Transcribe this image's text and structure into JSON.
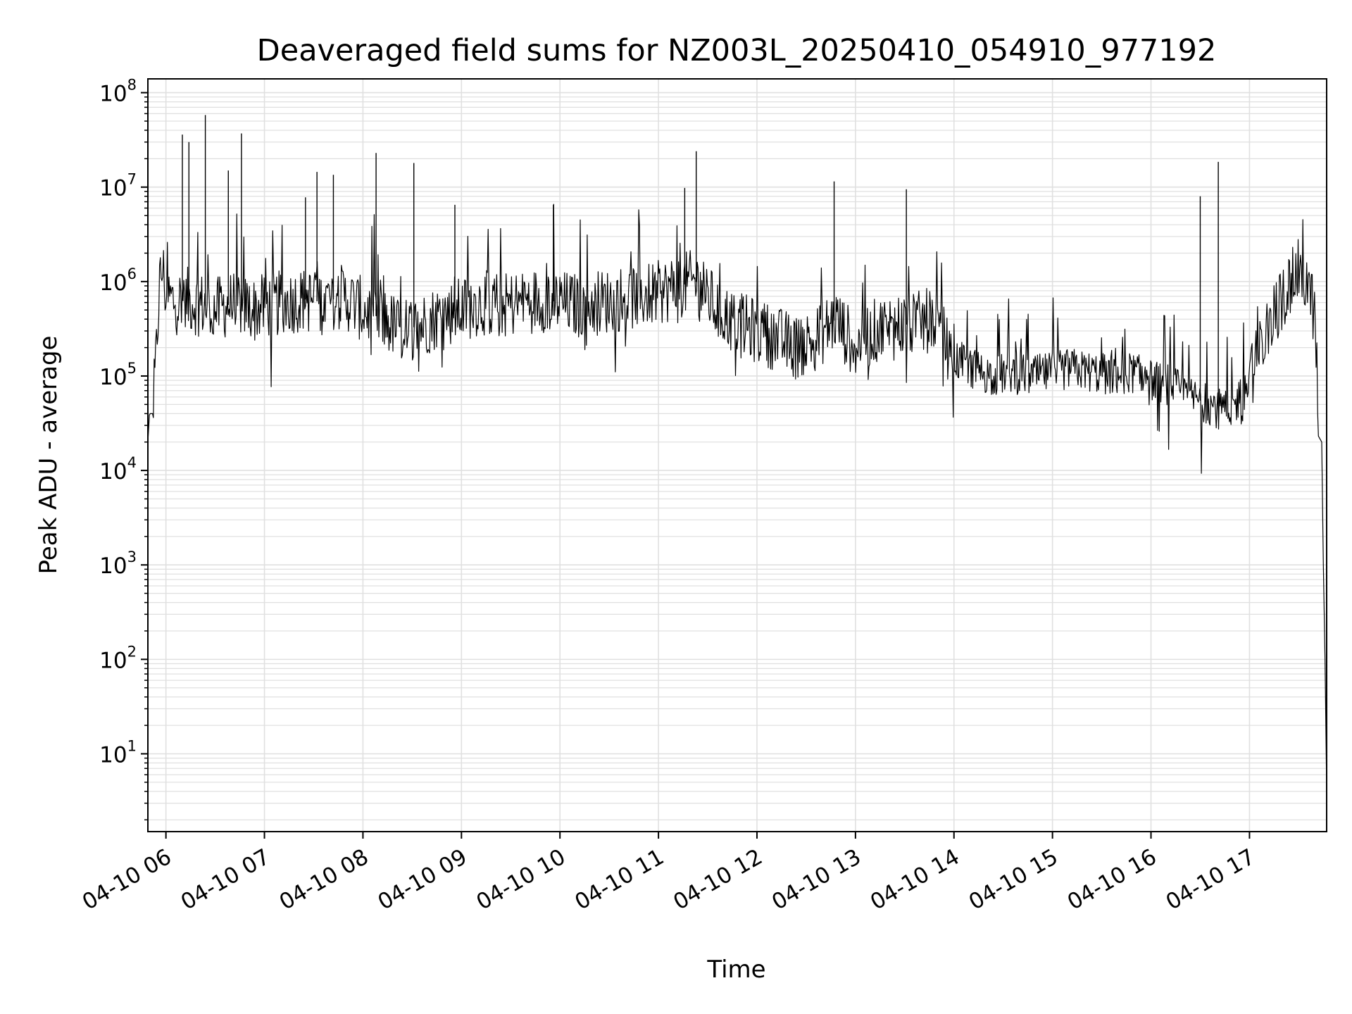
{
  "chart_data": {
    "type": "line",
    "title": "Deaveraged field sums for NZ003L_20250410_054910_977192",
    "xlabel": "Time",
    "ylabel": "Peak ADU - average",
    "yscale": "log",
    "ylim": [
      1.5,
      140000000
    ],
    "xlim": [
      "2025-04-10 05:49",
      "2025-04-10 17:47"
    ],
    "grid": true,
    "line_color": "#000000",
    "grid_color": "#e0e0e0",
    "x_tick_labels": [
      "04-10 06",
      "04-10 07",
      "04-10 08",
      "04-10 09",
      "04-10 10",
      "04-10 11",
      "04-10 12",
      "04-10 13",
      "04-10 14",
      "04-10 15",
      "04-10 16",
      "04-10 17"
    ],
    "x_ticks": [
      "2025-04-10 06:00",
      "2025-04-10 07:00",
      "2025-04-10 08:00",
      "2025-04-10 09:00",
      "2025-04-10 10:00",
      "2025-04-10 11:00",
      "2025-04-10 12:00",
      "2025-04-10 13:00",
      "2025-04-10 14:00",
      "2025-04-10 15:00",
      "2025-04-10 16:00",
      "2025-04-10 17:00"
    ],
    "y_ticks": [
      {
        "base": "10",
        "exp": "1",
        "value": 10
      },
      {
        "base": "10",
        "exp": "2",
        "value": 100
      },
      {
        "base": "10",
        "exp": "3",
        "value": 1000
      },
      {
        "base": "10",
        "exp": "4",
        "value": 10000
      },
      {
        "base": "10",
        "exp": "5",
        "value": 100000
      },
      {
        "base": "10",
        "exp": "6",
        "value": 1000000
      },
      {
        "base": "10",
        "exp": "7",
        "value": 10000000
      },
      {
        "base": "10",
        "exp": "8",
        "value": 100000000
      }
    ],
    "series": [
      {
        "x": [
          "2025-04-10 05:49",
          "2025-04-10 05:50",
          "2025-04-10 05:52",
          "2025-04-10 05:54",
          "2025-04-10 05:56",
          "2025-04-10 05:58",
          "2025-04-10 06:00",
          "2025-04-10 06:06",
          "2025-04-10 06:12",
          "2025-04-10 06:18",
          "2025-04-10 06:24",
          "2025-04-10 06:30",
          "2025-04-10 06:36",
          "2025-04-10 06:42",
          "2025-04-10 06:48",
          "2025-04-10 06:54",
          "2025-04-10 07:00",
          "2025-04-10 07:12",
          "2025-04-10 07:24",
          "2025-04-10 07:36",
          "2025-04-10 07:48",
          "2025-04-10 08:00",
          "2025-04-10 08:12",
          "2025-04-10 08:24",
          "2025-04-10 08:36",
          "2025-04-10 08:48",
          "2025-04-10 09:00",
          "2025-04-10 09:12",
          "2025-04-10 09:24",
          "2025-04-10 09:36",
          "2025-04-10 09:48",
          "2025-04-10 10:00",
          "2025-04-10 10:12",
          "2025-04-10 10:24",
          "2025-04-10 10:36",
          "2025-04-10 10:48",
          "2025-04-10 11:00",
          "2025-04-10 11:12",
          "2025-04-10 11:24",
          "2025-04-10 11:36",
          "2025-04-10 11:48",
          "2025-04-10 12:00",
          "2025-04-10 12:12",
          "2025-04-10 12:24",
          "2025-04-10 12:36",
          "2025-04-10 12:48",
          "2025-04-10 13:00",
          "2025-04-10 13:12",
          "2025-04-10 13:24",
          "2025-04-10 13:36",
          "2025-04-10 13:48",
          "2025-04-10 14:00",
          "2025-04-10 14:12",
          "2025-04-10 14:24",
          "2025-04-10 14:36",
          "2025-04-10 14:48",
          "2025-04-10 15:00",
          "2025-04-10 15:12",
          "2025-04-10 15:24",
          "2025-04-10 15:36",
          "2025-04-10 15:48",
          "2025-04-10 16:00",
          "2025-04-10 16:12",
          "2025-04-10 16:24",
          "2025-04-10 16:36",
          "2025-04-10 16:48",
          "2025-04-10 17:00",
          "2025-04-10 17:12",
          "2025-04-10 17:24",
          "2025-04-10 17:30",
          "2025-04-10 17:36",
          "2025-04-10 17:40",
          "2025-04-10 17:42",
          "2025-04-10 17:44",
          "2025-04-10 17:45",
          "2025-04-10 17:46",
          "2025-04-10 17:47"
        ],
        "y": [
          20000,
          40000,
          40000,
          150000,
          900000,
          1400000,
          700000,
          600000,
          650000,
          600000,
          550000,
          500000,
          550000,
          600000,
          550000,
          500000,
          550000,
          600000,
          650000,
          600000,
          700000,
          500000,
          400000,
          300000,
          350000,
          450000,
          500000,
          600000,
          550000,
          600000,
          650000,
          600000,
          550000,
          600000,
          650000,
          700000,
          750000,
          900000,
          1000000,
          500000,
          350000,
          300000,
          250000,
          200000,
          250000,
          400000,
          200000,
          300000,
          350000,
          350000,
          400000,
          150000,
          120000,
          100000,
          110000,
          100000,
          110000,
          120000,
          110000,
          100000,
          110000,
          90000,
          80000,
          60000,
          50000,
          40000,
          90000,
          350000,
          900000,
          1300000,
          900000,
          400000,
          40000,
          20000,
          1000,
          100,
          4
        ]
      }
    ],
    "spikes": [
      {
        "x": "2025-04-10 06:10",
        "y": 36000000
      },
      {
        "x": "2025-04-10 06:14",
        "y": 30000000
      },
      {
        "x": "2025-04-10 06:24",
        "y": 58000000
      },
      {
        "x": "2025-04-10 06:38",
        "y": 15000000
      },
      {
        "x": "2025-04-10 06:46",
        "y": 37000000
      },
      {
        "x": "2025-04-10 07:25",
        "y": 7800000
      },
      {
        "x": "2025-04-10 07:32",
        "y": 14500000
      },
      {
        "x": "2025-04-10 07:42",
        "y": 13500000
      },
      {
        "x": "2025-04-10 08:08",
        "y": 23000000
      },
      {
        "x": "2025-04-10 08:31",
        "y": 18000000
      },
      {
        "x": "2025-04-10 08:56",
        "y": 6500000
      },
      {
        "x": "2025-04-10 09:56",
        "y": 6500000
      },
      {
        "x": "2025-04-10 11:23",
        "y": 24000000
      },
      {
        "x": "2025-04-10 11:16",
        "y": 9800000
      },
      {
        "x": "2025-04-10 12:47",
        "y": 11500000
      },
      {
        "x": "2025-04-10 13:31",
        "y": 9500000
      },
      {
        "x": "2025-04-10 16:41",
        "y": 18500000
      },
      {
        "x": "2025-04-10 16:30",
        "y": 8000000
      }
    ]
  }
}
